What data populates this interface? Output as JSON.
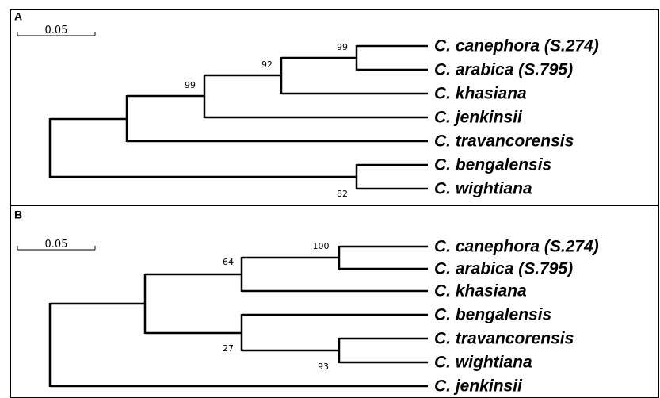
{
  "panels": [
    {
      "label": "A",
      "scale": "0.05",
      "taxa": [
        "C. canephora (S.274)",
        "C. arabica (S.795)",
        "C. khasiana",
        "C. jenkinsii",
        "C. travancorensis",
        "C. bengalensis",
        "C. wightiana"
      ],
      "bootstrap": [
        99,
        92,
        99,
        82
      ]
    },
    {
      "label": "B",
      "scale": "0.05",
      "taxa": [
        "C. canephora (S.274)",
        "C. arabica (S.795)",
        "C. khasiana",
        "C. bengalensis",
        "C. travancorensis",
        "C. wightiana",
        "C. jenkinsii"
      ],
      "bootstrap": [
        100,
        64,
        27,
        93
      ]
    }
  ]
}
